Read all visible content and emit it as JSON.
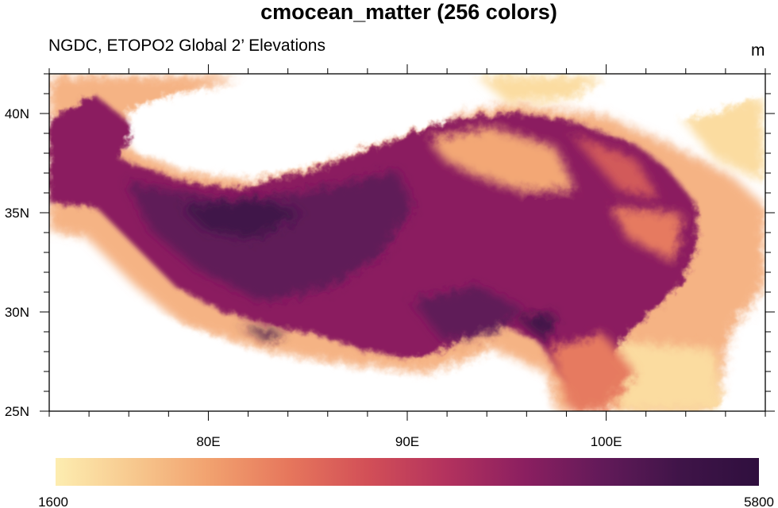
{
  "title": "cmocean_matter (256 colors)",
  "subtitle": "NGDC, ETOPO2 Global 2’ Elevations",
  "units": "m",
  "chart_data": {
    "type": "heatmap",
    "map": true,
    "variable": "elevation",
    "lon_range": [
      72,
      108
    ],
    "lat_range": [
      25,
      42
    ],
    "x_ticks": [
      {
        "value": 80,
        "label": "80E"
      },
      {
        "value": 90,
        "label": "90E"
      },
      {
        "value": 100,
        "label": "100E"
      }
    ],
    "y_ticks": [
      {
        "value": 25,
        "label": "25N"
      },
      {
        "value": 30,
        "label": "30N"
      },
      {
        "value": 35,
        "label": "35N"
      },
      {
        "value": 40,
        "label": "40N"
      }
    ],
    "colorbar": {
      "min": 1600,
      "max": 5800,
      "min_label": "1600",
      "max_label": "5800",
      "colormap": "cmocean_matter",
      "colors": [
        "#fdedb0",
        "#f7c88e",
        "#f1a06e",
        "#e6765c",
        "#d24f57",
        "#b3325e",
        "#8b1f60",
        "#621a59",
        "#3f1448",
        "#2f0f3e"
      ]
    },
    "below_min_color": "#ffffff"
  }
}
